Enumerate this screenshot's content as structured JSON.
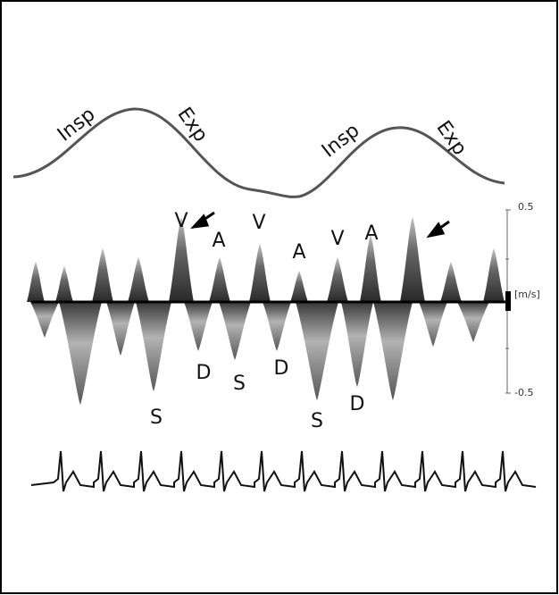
{
  "respiration_labels": [
    "Insp",
    "Exp",
    "Insp",
    "Exp"
  ],
  "wave_labels": [
    "V",
    "A",
    "V",
    "A",
    "V",
    "A",
    "S",
    "D",
    "S",
    "D",
    "S",
    "D"
  ],
  "scale": {
    "top": "0.5",
    "unit": "[m/s]",
    "bottom": "-0.5"
  }
}
